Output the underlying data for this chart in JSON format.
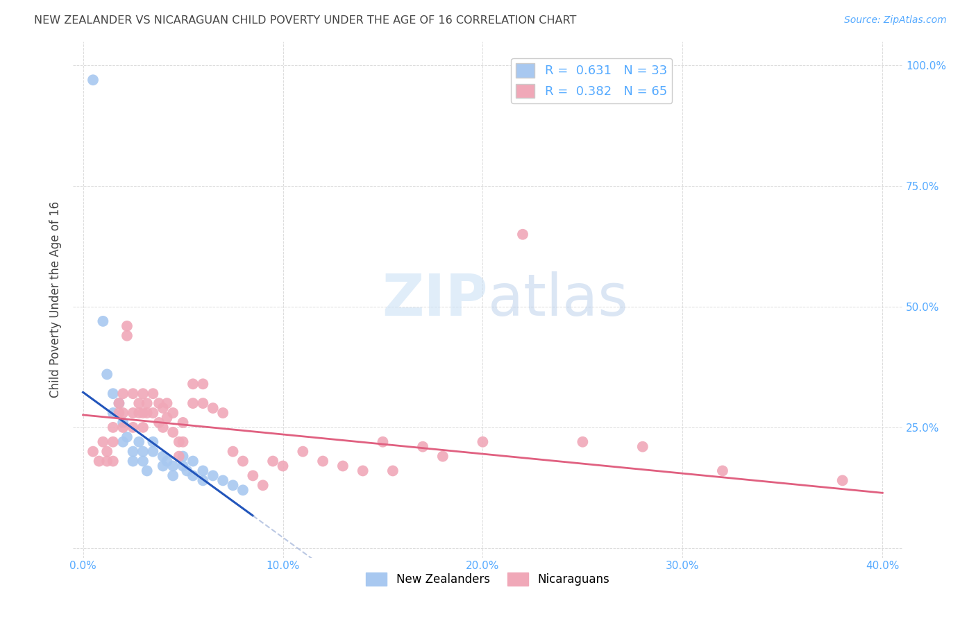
{
  "title": "NEW ZEALANDER VS NICARAGUAN CHILD POVERTY UNDER THE AGE OF 16 CORRELATION CHART",
  "source": "Source: ZipAtlas.com",
  "ylabel_label": "Child Poverty Under the Age of 16",
  "x_ticks": [
    0.0,
    10.0,
    20.0,
    30.0,
    40.0
  ],
  "x_tick_labels": [
    "0.0%",
    "10.0%",
    "20.0%",
    "30.0%",
    "40.0%"
  ],
  "y_ticks": [
    0.0,
    25.0,
    50.0,
    75.0,
    100.0
  ],
  "y_tick_labels": [
    "",
    "25.0%",
    "50.0%",
    "75.0%",
    "100.0%"
  ],
  "nz_R": 0.631,
  "nz_N": 33,
  "ni_R": 0.382,
  "ni_N": 65,
  "legend_label1": "New Zealanders",
  "legend_label2": "Nicaraguans",
  "nz_color": "#a8c8f0",
  "ni_color": "#f0a8b8",
  "nz_line_color": "#2255bb",
  "ni_line_color": "#e06080",
  "ref_line_color": "#aabbdd",
  "nz_scatter": [
    [
      0.5,
      97.0
    ],
    [
      1.0,
      47.0
    ],
    [
      1.2,
      36.0
    ],
    [
      1.5,
      32.0
    ],
    [
      1.5,
      28.0
    ],
    [
      1.8,
      30.0
    ],
    [
      2.0,
      26.0
    ],
    [
      2.0,
      22.0
    ],
    [
      2.2,
      23.0
    ],
    [
      2.5,
      20.0
    ],
    [
      2.5,
      18.0
    ],
    [
      2.8,
      22.0
    ],
    [
      3.0,
      20.0
    ],
    [
      3.0,
      18.0
    ],
    [
      3.2,
      16.0
    ],
    [
      3.5,
      22.0
    ],
    [
      3.5,
      20.0
    ],
    [
      4.0,
      19.0
    ],
    [
      4.0,
      17.0
    ],
    [
      4.2,
      18.0
    ],
    [
      4.5,
      17.0
    ],
    [
      4.5,
      15.0
    ],
    [
      5.0,
      19.0
    ],
    [
      5.0,
      17.0
    ],
    [
      5.2,
      16.0
    ],
    [
      5.5,
      18.0
    ],
    [
      5.5,
      15.0
    ],
    [
      6.0,
      16.0
    ],
    [
      6.0,
      14.0
    ],
    [
      6.5,
      15.0
    ],
    [
      7.0,
      14.0
    ],
    [
      7.5,
      13.0
    ],
    [
      8.0,
      12.0
    ]
  ],
  "ni_scatter": [
    [
      0.5,
      20.0
    ],
    [
      0.8,
      18.0
    ],
    [
      1.0,
      22.0
    ],
    [
      1.2,
      20.0
    ],
    [
      1.2,
      18.0
    ],
    [
      1.5,
      25.0
    ],
    [
      1.5,
      22.0
    ],
    [
      1.5,
      18.0
    ],
    [
      1.8,
      30.0
    ],
    [
      1.8,
      28.0
    ],
    [
      2.0,
      32.0
    ],
    [
      2.0,
      28.0
    ],
    [
      2.0,
      25.0
    ],
    [
      2.2,
      46.0
    ],
    [
      2.2,
      44.0
    ],
    [
      2.5,
      32.0
    ],
    [
      2.5,
      28.0
    ],
    [
      2.5,
      25.0
    ],
    [
      2.8,
      30.0
    ],
    [
      2.8,
      28.0
    ],
    [
      3.0,
      32.0
    ],
    [
      3.0,
      28.0
    ],
    [
      3.0,
      25.0
    ],
    [
      3.2,
      30.0
    ],
    [
      3.2,
      28.0
    ],
    [
      3.5,
      32.0
    ],
    [
      3.5,
      28.0
    ],
    [
      3.8,
      30.0
    ],
    [
      3.8,
      26.0
    ],
    [
      4.0,
      29.0
    ],
    [
      4.0,
      25.0
    ],
    [
      4.2,
      30.0
    ],
    [
      4.2,
      27.0
    ],
    [
      4.5,
      28.0
    ],
    [
      4.5,
      24.0
    ],
    [
      4.8,
      22.0
    ],
    [
      4.8,
      19.0
    ],
    [
      5.0,
      26.0
    ],
    [
      5.0,
      22.0
    ],
    [
      5.5,
      34.0
    ],
    [
      5.5,
      30.0
    ],
    [
      6.0,
      34.0
    ],
    [
      6.0,
      30.0
    ],
    [
      6.5,
      29.0
    ],
    [
      7.0,
      28.0
    ],
    [
      7.5,
      20.0
    ],
    [
      8.0,
      18.0
    ],
    [
      8.5,
      15.0
    ],
    [
      9.0,
      13.0
    ],
    [
      9.5,
      18.0
    ],
    [
      10.0,
      17.0
    ],
    [
      11.0,
      20.0
    ],
    [
      12.0,
      18.0
    ],
    [
      13.0,
      17.0
    ],
    [
      14.0,
      16.0
    ],
    [
      15.0,
      22.0
    ],
    [
      15.5,
      16.0
    ],
    [
      17.0,
      21.0
    ],
    [
      18.0,
      19.0
    ],
    [
      20.0,
      22.0
    ],
    [
      22.0,
      65.0
    ],
    [
      25.0,
      22.0
    ],
    [
      28.0,
      21.0
    ],
    [
      32.0,
      16.0
    ],
    [
      38.0,
      14.0
    ]
  ],
  "watermark_zip": "ZIP",
  "watermark_atlas": "atlas",
  "bg_color": "#ffffff",
  "grid_color": "#cccccc",
  "axis_label_color": "#55aaff",
  "title_color": "#444444"
}
